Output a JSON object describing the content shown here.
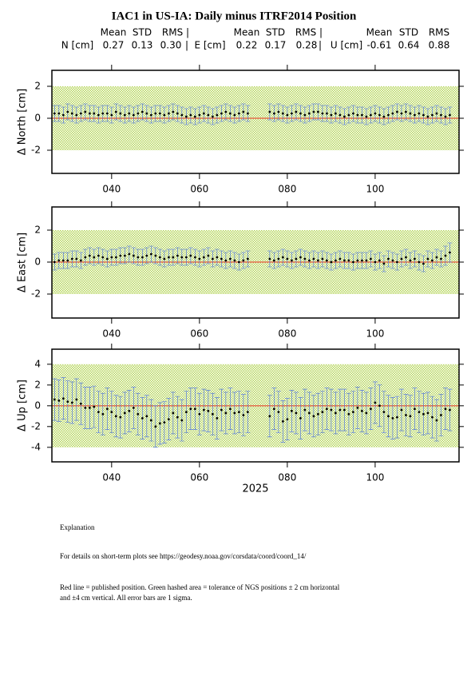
{
  "header": {
    "title": "IAC1 in US-IA: Daily minus ITRF2014 Position",
    "stats": [
      {
        "label": "N [cm]",
        "headers": [
          "Mean",
          "STD",
          "RMS |"
        ],
        "values": [
          "0.27",
          "0.13",
          "0.30"
        ],
        "sep": "|"
      },
      {
        "label": "E [cm]",
        "headers": [
          "Mean",
          "STD",
          "RMS |"
        ],
        "values": [
          "0.22",
          "0.17",
          "0.28"
        ],
        "sep": "|"
      },
      {
        "label": "U [cm]",
        "headers": [
          "Mean",
          "STD",
          "RMS"
        ],
        "values": [
          "-0.61",
          "0.64",
          "0.88"
        ]
      }
    ]
  },
  "chart_data": [
    {
      "type": "scatter",
      "ylabel": "Δ North  [cm]",
      "x": [
        27,
        28,
        29,
        30,
        31,
        32,
        33,
        34,
        35,
        36,
        37,
        38,
        39,
        40,
        41,
        42,
        43,
        44,
        45,
        46,
        47,
        48,
        49,
        50,
        51,
        52,
        53,
        54,
        55,
        56,
        57,
        58,
        59,
        60,
        61,
        62,
        63,
        64,
        65,
        66,
        67,
        68,
        69,
        70,
        71,
        76,
        77,
        78,
        79,
        80,
        81,
        82,
        83,
        84,
        85,
        86,
        87,
        88,
        89,
        90,
        91,
        92,
        93,
        94,
        95,
        96,
        97,
        98,
        99,
        100,
        101,
        102,
        103,
        104,
        105,
        106,
        107,
        108,
        109,
        110,
        111,
        112,
        113,
        114,
        115,
        116,
        117
      ],
      "values": [
        0.3,
        0.3,
        0.2,
        0.4,
        0.3,
        0.2,
        0.3,
        0.4,
        0.3,
        0.3,
        0.2,
        0.3,
        0.3,
        0.2,
        0.4,
        0.3,
        0.2,
        0.3,
        0.2,
        0.3,
        0.4,
        0.3,
        0.2,
        0.3,
        0.3,
        0.2,
        0.3,
        0.4,
        0.3,
        0.2,
        0.1,
        0.2,
        0.1,
        0.2,
        0.3,
        0.2,
        0.1,
        0.2,
        0.3,
        0.4,
        0.3,
        0.2,
        0.3,
        0.4,
        0.3,
        0.4,
        0.3,
        0.4,
        0.3,
        0.2,
        0.3,
        0.4,
        0.3,
        0.2,
        0.3,
        0.4,
        0.4,
        0.3,
        0.3,
        0.2,
        0.3,
        0.2,
        0.1,
        0.2,
        0.3,
        0.2,
        0.2,
        0.1,
        0.2,
        0.3,
        0.2,
        0.1,
        0.2,
        0.3,
        0.4,
        0.3,
        0.4,
        0.3,
        0.2,
        0.3,
        0.2,
        0.1,
        0.2,
        0.3,
        0.2,
        0.1,
        0.2
      ],
      "errors": [
        0.5,
        0.5,
        0.5,
        0.5,
        0.5,
        0.5,
        0.5,
        0.5,
        0.5,
        0.5,
        0.5,
        0.5,
        0.5,
        0.5,
        0.5,
        0.5,
        0.5,
        0.5,
        0.5,
        0.5,
        0.5,
        0.5,
        0.5,
        0.5,
        0.5,
        0.5,
        0.5,
        0.5,
        0.5,
        0.5,
        0.5,
        0.5,
        0.5,
        0.5,
        0.5,
        0.5,
        0.5,
        0.5,
        0.5,
        0.5,
        0.5,
        0.5,
        0.5,
        0.5,
        0.5,
        0.5,
        0.5,
        0.5,
        0.5,
        0.5,
        0.5,
        0.5,
        0.5,
        0.5,
        0.5,
        0.5,
        0.5,
        0.5,
        0.5,
        0.5,
        0.5,
        0.5,
        0.5,
        0.5,
        0.5,
        0.5,
        0.5,
        0.5,
        0.5,
        0.5,
        0.5,
        0.5,
        0.5,
        0.5,
        0.5,
        0.5,
        0.5,
        0.5,
        0.5,
        0.5,
        0.5,
        0.5,
        0.5,
        0.5,
        0.5,
        0.5,
        0.5
      ],
      "xlim": [
        26.4,
        119.1
      ],
      "ylim": [
        -3.45,
        3
      ],
      "xticks": [
        {
          "value": 40,
          "label": "040"
        },
        {
          "value": 60,
          "label": "060"
        },
        {
          "value": 80,
          "label": "080"
        },
        {
          "value": 100,
          "label": "100"
        }
      ],
      "yticks": [
        -2,
        0,
        2
      ],
      "reference": 0,
      "tolerance": [
        -2,
        2
      ],
      "color": "#000000",
      "error_color": "#4169e1",
      "reference_color": "#e8321e",
      "tolerance_color": "#b5d65a"
    },
    {
      "type": "scatter",
      "ylabel": "Δ East  [cm]",
      "x": [
        27,
        28,
        29,
        30,
        31,
        32,
        33,
        34,
        35,
        36,
        37,
        38,
        39,
        40,
        41,
        42,
        43,
        44,
        45,
        46,
        47,
        48,
        49,
        50,
        51,
        52,
        53,
        54,
        55,
        56,
        57,
        58,
        59,
        60,
        61,
        62,
        63,
        64,
        65,
        66,
        67,
        68,
        69,
        70,
        71,
        76,
        77,
        78,
        79,
        80,
        81,
        82,
        83,
        84,
        85,
        86,
        87,
        88,
        89,
        90,
        91,
        92,
        93,
        94,
        95,
        96,
        97,
        98,
        99,
        100,
        101,
        102,
        103,
        104,
        105,
        106,
        107,
        108,
        109,
        110,
        111,
        112,
        113,
        114,
        115,
        116,
        117
      ],
      "values": [
        0.0,
        0.1,
        0.1,
        0.1,
        0.2,
        0.2,
        0.1,
        0.3,
        0.4,
        0.3,
        0.4,
        0.3,
        0.2,
        0.3,
        0.3,
        0.4,
        0.4,
        0.5,
        0.4,
        0.3,
        0.3,
        0.4,
        0.5,
        0.4,
        0.3,
        0.2,
        0.3,
        0.3,
        0.4,
        0.3,
        0.3,
        0.4,
        0.3,
        0.2,
        0.3,
        0.4,
        0.2,
        0.3,
        0.2,
        0.1,
        0.2,
        0.1,
        0.0,
        0.1,
        0.2,
        0.2,
        0.1,
        0.2,
        0.3,
        0.2,
        0.1,
        0.2,
        0.3,
        0.2,
        0.1,
        0.2,
        0.1,
        0.2,
        0.1,
        0.0,
        0.1,
        0.2,
        0.1,
        0.1,
        0.0,
        0.1,
        0.1,
        0.1,
        0.2,
        0.0,
        0.1,
        -0.1,
        0.2,
        0.1,
        0.0,
        0.2,
        0.3,
        0.1,
        0.2,
        0.0,
        -0.1,
        0.2,
        0.1,
        0.3,
        0.2,
        0.4,
        0.6
      ],
      "errors": [
        0.5,
        0.5,
        0.5,
        0.5,
        0.5,
        0.5,
        0.5,
        0.5,
        0.5,
        0.5,
        0.5,
        0.5,
        0.5,
        0.5,
        0.5,
        0.5,
        0.5,
        0.5,
        0.5,
        0.5,
        0.5,
        0.5,
        0.5,
        0.5,
        0.5,
        0.5,
        0.5,
        0.5,
        0.5,
        0.5,
        0.5,
        0.5,
        0.5,
        0.5,
        0.5,
        0.5,
        0.5,
        0.5,
        0.5,
        0.5,
        0.5,
        0.5,
        0.5,
        0.5,
        0.5,
        0.5,
        0.5,
        0.5,
        0.5,
        0.5,
        0.5,
        0.5,
        0.5,
        0.5,
        0.5,
        0.5,
        0.5,
        0.5,
        0.5,
        0.5,
        0.5,
        0.5,
        0.5,
        0.5,
        0.5,
        0.5,
        0.5,
        0.5,
        0.5,
        0.5,
        0.5,
        0.5,
        0.5,
        0.5,
        0.5,
        0.5,
        0.5,
        0.5,
        0.5,
        0.5,
        0.5,
        0.5,
        0.5,
        0.5,
        0.5,
        0.6,
        0.6
      ],
      "xlim": [
        26.4,
        119.1
      ],
      "ylim": [
        -3.5,
        3.45
      ],
      "xticks": [
        {
          "value": 40,
          "label": "040"
        },
        {
          "value": 60,
          "label": "060"
        },
        {
          "value": 80,
          "label": "080"
        },
        {
          "value": 100,
          "label": "100"
        }
      ],
      "yticks": [
        -2,
        0,
        2
      ],
      "reference": 0,
      "tolerance": [
        -2,
        2
      ],
      "color": "#000000",
      "error_color": "#4169e1",
      "reference_color": "#e8321e",
      "tolerance_color": "#b5d65a"
    },
    {
      "type": "scatter",
      "ylabel": "Δ Up  [cm]",
      "xlabel": "2025",
      "x": [
        27,
        28,
        29,
        30,
        31,
        32,
        33,
        34,
        35,
        36,
        37,
        38,
        39,
        40,
        41,
        42,
        43,
        44,
        45,
        46,
        47,
        48,
        49,
        50,
        51,
        52,
        53,
        54,
        55,
        56,
        57,
        58,
        59,
        60,
        61,
        62,
        63,
        64,
        65,
        66,
        67,
        68,
        69,
        70,
        71,
        76,
        77,
        78,
        79,
        80,
        81,
        82,
        83,
        84,
        85,
        86,
        87,
        88,
        89,
        90,
        91,
        92,
        93,
        94,
        95,
        96,
        97,
        98,
        99,
        100,
        101,
        102,
        103,
        104,
        105,
        106,
        107,
        108,
        109,
        110,
        111,
        112,
        113,
        114,
        115,
        116,
        117
      ],
      "values": [
        0.6,
        0.5,
        0.7,
        0.4,
        0.3,
        0.6,
        0.2,
        -0.2,
        -0.2,
        -0.1,
        -0.6,
        -0.8,
        -0.3,
        -0.6,
        -1.0,
        -1.1,
        -0.7,
        -0.5,
        -0.2,
        -0.8,
        -1.2,
        -1.0,
        -1.4,
        -2.0,
        -1.7,
        -1.6,
        -1.3,
        -0.7,
        -1.1,
        -1.4,
        -0.6,
        -0.3,
        -0.3,
        -0.8,
        -0.4,
        -0.5,
        -0.8,
        -1.2,
        -0.4,
        -0.7,
        -0.3,
        -0.7,
        -0.6,
        -0.9,
        -0.6,
        -1.0,
        -0.3,
        -0.6,
        -1.5,
        -1.3,
        -0.5,
        -0.7,
        -1.2,
        -0.4,
        -0.7,
        -1.0,
        -0.8,
        -0.6,
        -0.3,
        -0.4,
        -0.7,
        -0.4,
        -0.4,
        -0.8,
        -0.6,
        -0.2,
        -0.5,
        -0.7,
        -0.3,
        0.3,
        0.0,
        -0.6,
        -1.0,
        -1.2,
        -1.1,
        -0.4,
        -0.9,
        -1.0,
        -0.3,
        -0.6,
        -0.8,
        -0.7,
        -1.1,
        -1.4,
        -0.9,
        -0.3,
        -0.4
      ],
      "errors": [
        2.0,
        2.0,
        2.0,
        2.0,
        2.0,
        2.0,
        2.0,
        2.0,
        2.0,
        2.0,
        2.0,
        2.0,
        2.0,
        2.0,
        2.0,
        2.0,
        2.0,
        2.0,
        2.0,
        2.0,
        2.0,
        2.0,
        2.0,
        2.0,
        2.0,
        2.0,
        2.0,
        2.0,
        2.0,
        2.0,
        2.0,
        2.0,
        2.0,
        2.0,
        2.0,
        2.0,
        2.0,
        2.0,
        2.0,
        2.0,
        2.0,
        2.0,
        2.0,
        2.0,
        2.0,
        2.0,
        2.0,
        2.0,
        2.0,
        2.0,
        2.0,
        2.0,
        2.0,
        2.0,
        2.0,
        2.0,
        2.0,
        2.0,
        2.0,
        2.0,
        2.0,
        2.0,
        2.0,
        2.0,
        2.0,
        2.0,
        2.0,
        2.0,
        2.0,
        2.0,
        2.0,
        2.0,
        2.0,
        2.0,
        2.0,
        2.0,
        2.0,
        2.0,
        2.0,
        2.0,
        2.0,
        2.0,
        2.0,
        2.0,
        2.0,
        2.0,
        2.0
      ],
      "xlim": [
        26.4,
        119.1
      ],
      "ylim": [
        -5.4,
        5.45
      ],
      "xticks": [
        {
          "value": 40,
          "label": "040"
        },
        {
          "value": 60,
          "label": "060"
        },
        {
          "value": 80,
          "label": "080"
        },
        {
          "value": 100,
          "label": "100"
        }
      ],
      "yticks": [
        -4,
        -2,
        0,
        2,
        4
      ],
      "reference": 0,
      "tolerance": [
        -4,
        4
      ],
      "color": "#000000",
      "error_color": "#4169e1",
      "reference_color": "#e8321e",
      "tolerance_color": "#b5d65a"
    }
  ],
  "explanation": {
    "heading": "Explanation",
    "lines": [
      "For details on short-term plots see https://geodesy.noaa.gov/corsdata/coord/coord_14/",
      "Red line = published position.  Green hashed area = tolerance of NGS positions ± 2 cm horizontal",
      "and ±4 cm vertical.  All error bars are 1 sigma."
    ]
  }
}
